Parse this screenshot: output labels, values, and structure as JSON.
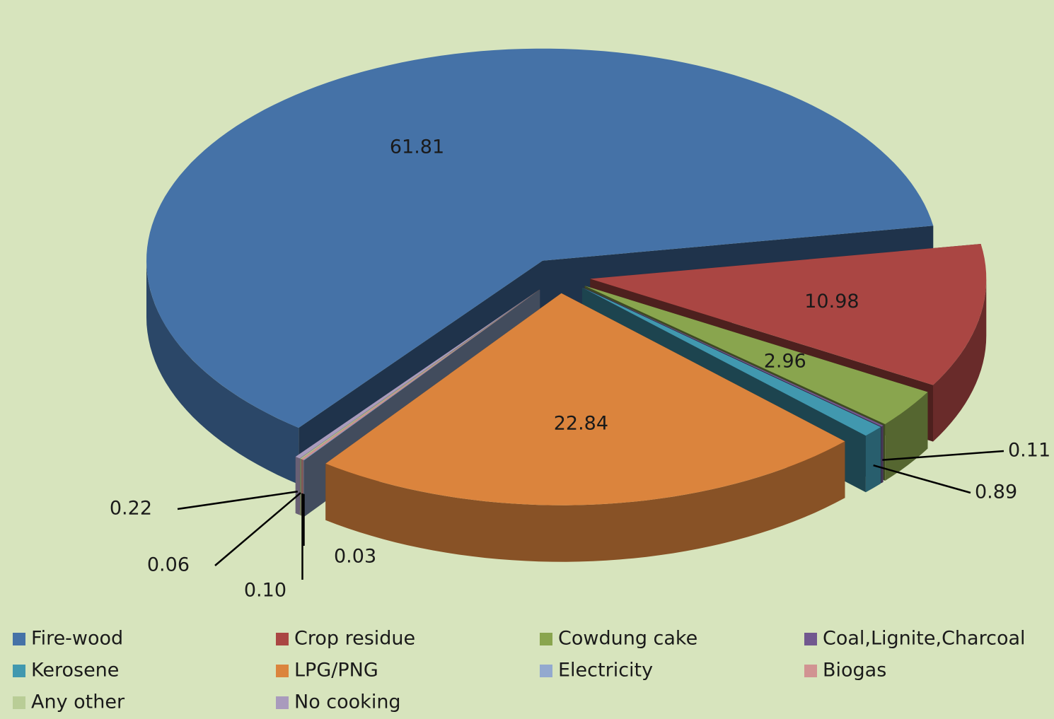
{
  "chart_data": {
    "type": "pie",
    "categories": [
      "Fire-wood",
      "Crop residue",
      "Cowdung cake",
      "Coal,Lignite,Charcoal",
      "Kerosene",
      "LPG/PNG",
      "Electricity",
      "Biogas",
      "Any other",
      "No cooking"
    ],
    "values": [
      61.81,
      10.98,
      2.96,
      0.11,
      0.89,
      22.84,
      0.03,
      0.1,
      0.06,
      0.22
    ],
    "value_labels": [
      "61.81",
      "10.98",
      "2.96",
      "0.11",
      "0.89",
      "22.84",
      "0.03",
      "0.10",
      "0.06",
      "0.22"
    ],
    "colors": [
      "#4572a7",
      "#aa4643",
      "#89a54e",
      "#71588f",
      "#4198af",
      "#db843d",
      "#93a9cf",
      "#d19392",
      "#b9cd96",
      "#a99bbd"
    ],
    "legend": "bottom"
  }
}
